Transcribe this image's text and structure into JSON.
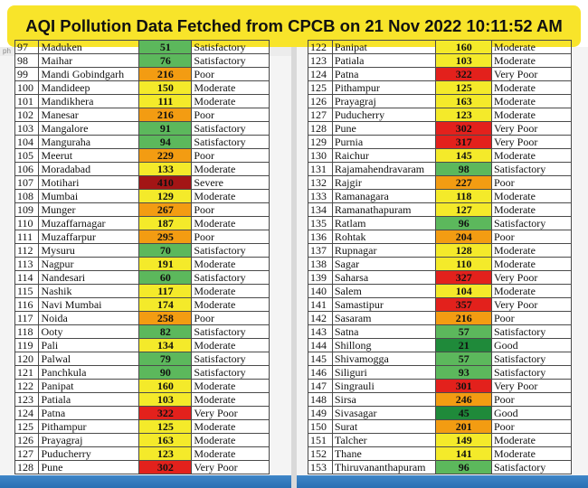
{
  "title": "AQI Pollution Data Fetched from CPCB on 21 Nov 2022 10:11:52 AM",
  "left_header_fragment": "ph",
  "colors": {
    "Good": "#1f8a3a",
    "Satisfactory": "#5cb85c",
    "Moderate": "#f4ea2a",
    "Poor": "#f39c12",
    "Very Poor": "#e3211c",
    "Severe": "#a31515",
    "banner": "#f8e42a"
  },
  "left_rows": [
    [
      "97",
      "Maduken",
      "51",
      "Satisfactory"
    ],
    [
      "98",
      "Maihar",
      "76",
      "Satisfactory"
    ],
    [
      "99",
      "Mandi Gobindgarh",
      "216",
      "Poor"
    ],
    [
      "100",
      "Mandideep",
      "150",
      "Moderate"
    ],
    [
      "101",
      "Mandikhera",
      "111",
      "Moderate"
    ],
    [
      "102",
      "Manesar",
      "216",
      "Poor"
    ],
    [
      "103",
      "Mangalore",
      "91",
      "Satisfactory"
    ],
    [
      "104",
      "Manguraha",
      "94",
      "Satisfactory"
    ],
    [
      "105",
      "Meerut",
      "229",
      "Poor"
    ],
    [
      "106",
      "Moradabad",
      "133",
      "Moderate"
    ],
    [
      "107",
      "Motihari",
      "410",
      "Severe"
    ],
    [
      "108",
      "Mumbai",
      "129",
      "Moderate"
    ],
    [
      "109",
      "Munger",
      "267",
      "Poor"
    ],
    [
      "110",
      "Muzaffarnagar",
      "187",
      "Moderate"
    ],
    [
      "111",
      "Muzaffarpur",
      "295",
      "Poor"
    ],
    [
      "112",
      "Mysuru",
      "70",
      "Satisfactory"
    ],
    [
      "113",
      "Nagpur",
      "191",
      "Moderate"
    ],
    [
      "114",
      "Nandesari",
      "60",
      "Satisfactory"
    ],
    [
      "115",
      "Nashik",
      "117",
      "Moderate"
    ],
    [
      "116",
      "Navi Mumbai",
      "174",
      "Moderate"
    ],
    [
      "117",
      "Noida",
      "258",
      "Poor"
    ],
    [
      "118",
      "Ooty",
      "82",
      "Satisfactory"
    ],
    [
      "119",
      "Pali",
      "134",
      "Moderate"
    ],
    [
      "120",
      "Palwal",
      "79",
      "Satisfactory"
    ],
    [
      "121",
      "Panchkula",
      "90",
      "Satisfactory"
    ],
    [
      "122",
      "Panipat",
      "160",
      "Moderate"
    ],
    [
      "123",
      "Patiala",
      "103",
      "Moderate"
    ],
    [
      "124",
      "Patna",
      "322",
      "Very Poor"
    ],
    [
      "125",
      "Pithampur",
      "125",
      "Moderate"
    ],
    [
      "126",
      "Prayagraj",
      "163",
      "Moderate"
    ],
    [
      "127",
      "Puducherry",
      "123",
      "Moderate"
    ],
    [
      "128",
      "Pune",
      "302",
      "Very Poor"
    ]
  ],
  "right_rows": [
    [
      "122",
      "Panipat",
      "160",
      "Moderate"
    ],
    [
      "123",
      "Patiala",
      "103",
      "Moderate"
    ],
    [
      "124",
      "Patna",
      "322",
      "Very Poor"
    ],
    [
      "125",
      "Pithampur",
      "125",
      "Moderate"
    ],
    [
      "126",
      "Prayagraj",
      "163",
      "Moderate"
    ],
    [
      "127",
      "Puducherry",
      "123",
      "Moderate"
    ],
    [
      "128",
      "Pune",
      "302",
      "Very Poor"
    ],
    [
      "129",
      "Purnia",
      "317",
      "Very Poor"
    ],
    [
      "130",
      "Raichur",
      "145",
      "Moderate"
    ],
    [
      "131",
      "Rajamahendravaram",
      "98",
      "Satisfactory"
    ],
    [
      "132",
      "Rajgir",
      "227",
      "Poor"
    ],
    [
      "133",
      "Ramanagara",
      "118",
      "Moderate"
    ],
    [
      "134",
      "Ramanathapuram",
      "127",
      "Moderate"
    ],
    [
      "135",
      "Ratlam",
      "96",
      "Satisfactory"
    ],
    [
      "136",
      "Rohtak",
      "204",
      "Poor"
    ],
    [
      "137",
      "Rupnagar",
      "128",
      "Moderate"
    ],
    [
      "138",
      "Sagar",
      "110",
      "Moderate"
    ],
    [
      "139",
      "Saharsa",
      "327",
      "Very Poor"
    ],
    [
      "140",
      "Salem",
      "104",
      "Moderate"
    ],
    [
      "141",
      "Samastipur",
      "357",
      "Very Poor"
    ],
    [
      "142",
      "Sasaram",
      "216",
      "Poor"
    ],
    [
      "143",
      "Satna",
      "57",
      "Satisfactory"
    ],
    [
      "144",
      "Shillong",
      "21",
      "Good"
    ],
    [
      "145",
      "Shivamogga",
      "57",
      "Satisfactory"
    ],
    [
      "146",
      "Siliguri",
      "93",
      "Satisfactory"
    ],
    [
      "147",
      "Singrauli",
      "301",
      "Very Poor"
    ],
    [
      "148",
      "Sirsa",
      "246",
      "Poor"
    ],
    [
      "149",
      "Sivasagar",
      "45",
      "Good"
    ],
    [
      "150",
      "Surat",
      "201",
      "Poor"
    ],
    [
      "151",
      "Talcher",
      "149",
      "Moderate"
    ],
    [
      "152",
      "Thane",
      "141",
      "Moderate"
    ],
    [
      "153",
      "Thiruvananthapuram",
      "96",
      "Satisfactory"
    ]
  ]
}
